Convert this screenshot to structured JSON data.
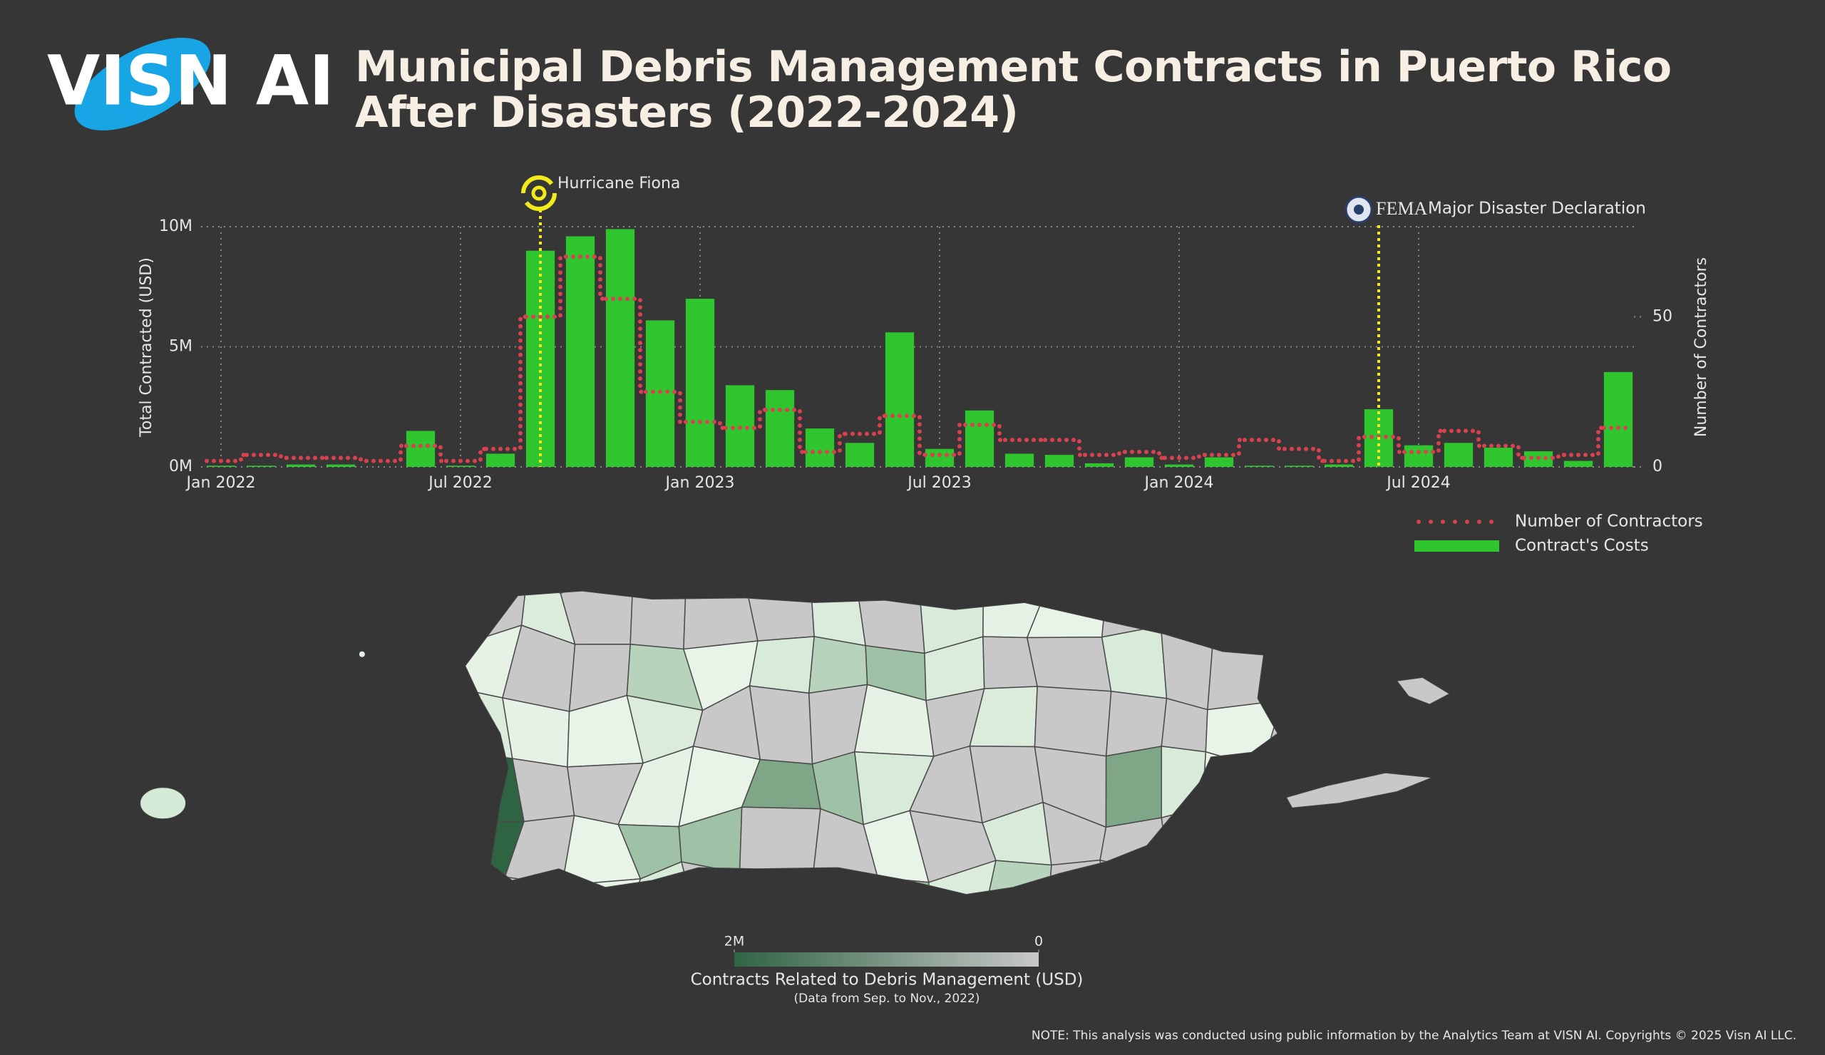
{
  "logo": "VISN AI",
  "note": "NOTE: This analysis was conducted using public information by the Analytics Team at VISN AI. Copyrights © 2025 Visn AI LLC.",
  "chart_data": [
    {
      "type": "bar",
      "title": "Municipal Debris Management Contracts in Puerto Rico After Disasters (2022-2024)",
      "categories": [
        "Jan 2022",
        null,
        null,
        null,
        null,
        null,
        "Jul 2022",
        null,
        null,
        null,
        null,
        null,
        "Jan 2023",
        null,
        null,
        null,
        null,
        null,
        "Jul 2023",
        null,
        null,
        null,
        null,
        null,
        "Jan 2024",
        null,
        null,
        null,
        null,
        null,
        "Jul 2024",
        null,
        null,
        null,
        null,
        null
      ],
      "series": [
        {
          "name": "Number of Contractors",
          "color": "#d9414e",
          "axis": "y2",
          "style": "dotted-step",
          "values": [
            2,
            4,
            3,
            3,
            2,
            7,
            2,
            6,
            50,
            70,
            56,
            25,
            15,
            13,
            19,
            5,
            11,
            17,
            4,
            14,
            9,
            9,
            4,
            5,
            3,
            4,
            9,
            6,
            2,
            10,
            5,
            12,
            7,
            3,
            4,
            13
          ]
        },
        {
          "name": "Contract's Costs",
          "color": "#2ec52e",
          "values": [
            50000,
            50000,
            100000,
            100000,
            0,
            1500000,
            50000,
            550000,
            9000000,
            9600000,
            9900000,
            6100000,
            7000000,
            3400000,
            3200000,
            1600000,
            1000000,
            5600000,
            750000,
            2350000,
            550000,
            500000,
            150000,
            400000,
            100000,
            400000,
            50000,
            50000,
            100000,
            2400000,
            900000,
            1000000,
            800000,
            650000,
            250000,
            3950000
          ]
        }
      ],
      "y_label": "Total Contracted (USD)",
      "y2_label": "Number of Contractors",
      "ylim": [
        0,
        10000000
      ],
      "yticks": [
        {
          "value": 0,
          "label": "0M"
        },
        {
          "value": 5000000,
          "label": "5M"
        },
        {
          "value": 10000000,
          "label": "10M"
        }
      ],
      "y2lim": [
        0,
        80
      ],
      "y2ticks": [
        0,
        50
      ],
      "grid": true,
      "legend": "bottom-right",
      "annotations": [
        {
          "label": "Hurricane Fiona"
        },
        {
          "agency": "FEMA",
          "label": "Major Disaster Declaration"
        }
      ]
    },
    {
      "type": "map",
      "title": "Contracts Related to Debris Management (USD)",
      "subtitle": "(Data from Sep. to Nov., 2022)",
      "colorbar": {
        "range": [
          2000000,
          0
        ],
        "colors": [
          "#2f6443",
          "#c8c8c8"
        ],
        "ticks": [
          {
            "value": 2000000,
            "label": "2M"
          },
          {
            "value": 0,
            "label": "0"
          }
        ]
      }
    }
  ]
}
